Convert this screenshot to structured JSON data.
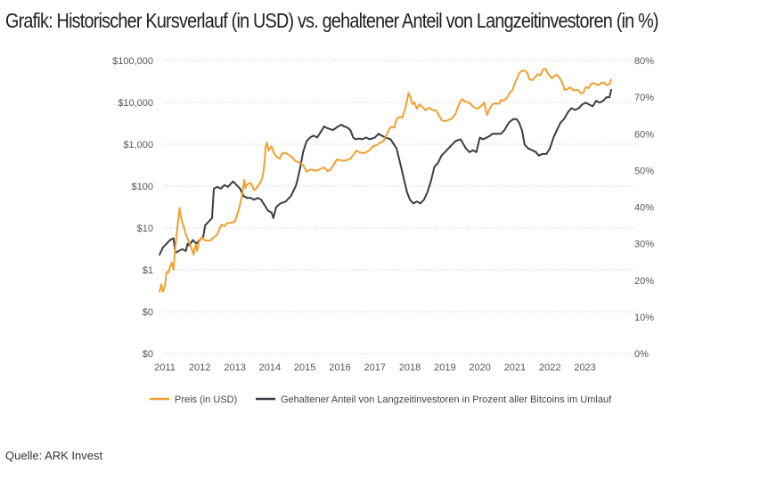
{
  "title": "Grafik: Historischer Kursverlauf (in USD) vs. gehaltener Anteil von Langzeitinvestoren (in %)",
  "source": "Quelle: ARK Invest",
  "chart_data": {
    "type": "line",
    "x_ticks": [
      "2011",
      "2012",
      "2013",
      "2014",
      "2015",
      "2016",
      "2017",
      "2018",
      "2019",
      "2020",
      "2021",
      "2022",
      "2023"
    ],
    "y_left_ticks": [
      "$100,000",
      "$10,000",
      "$1,000",
      "$100",
      "$10",
      "$1",
      "$0",
      "$0"
    ],
    "y_right_ticks": [
      "80%",
      "70%",
      "60%",
      "50%",
      "40%",
      "30%",
      "20%",
      "10%",
      "0%"
    ],
    "y_left_range_log10": [
      -2,
      5
    ],
    "y_right_range": [
      0,
      80
    ],
    "x_range": [
      2011,
      2023.75
    ],
    "legend_position": "bottom",
    "colors": {
      "price": "#f0a030",
      "share": "#3a3d43",
      "grid": "#d9d9d9"
    },
    "series": [
      {
        "name": "Preis (in USD)",
        "axis": "left",
        "color": "#f0a030",
        "points": [
          [
            2010.85,
            0.3
          ],
          [
            2010.9,
            0.45
          ],
          [
            2010.95,
            0.3
          ],
          [
            2011.0,
            0.4
          ],
          [
            2011.05,
            0.9
          ],
          [
            2011.1,
            0.85
          ],
          [
            2011.15,
            1.2
          ],
          [
            2011.2,
            1.5
          ],
          [
            2011.25,
            1.0
          ],
          [
            2011.3,
            3.5
          ],
          [
            2011.35,
            9
          ],
          [
            2011.42,
            30
          ],
          [
            2011.46,
            18
          ],
          [
            2011.5,
            14
          ],
          [
            2011.55,
            10
          ],
          [
            2011.6,
            7
          ],
          [
            2011.7,
            4.5
          ],
          [
            2011.78,
            3
          ],
          [
            2011.82,
            2.3
          ],
          [
            2011.88,
            4
          ],
          [
            2011.92,
            2.8
          ],
          [
            2011.97,
            4.5
          ],
          [
            2012.05,
            6
          ],
          [
            2012.15,
            5
          ],
          [
            2012.3,
            5
          ],
          [
            2012.4,
            6
          ],
          [
            2012.5,
            7
          ],
          [
            2012.55,
            9
          ],
          [
            2012.62,
            12
          ],
          [
            2012.7,
            11
          ],
          [
            2012.78,
            13
          ],
          [
            2012.9,
            13.5
          ],
          [
            2013.0,
            14
          ],
          [
            2013.1,
            25
          ],
          [
            2013.2,
            55
          ],
          [
            2013.27,
            140
          ],
          [
            2013.3,
            90
          ],
          [
            2013.35,
            110
          ],
          [
            2013.45,
            120
          ],
          [
            2013.55,
            80
          ],
          [
            2013.62,
            90
          ],
          [
            2013.7,
            115
          ],
          [
            2013.75,
            130
          ],
          [
            2013.8,
            180
          ],
          [
            2013.85,
            380
          ],
          [
            2013.88,
            900
          ],
          [
            2013.92,
            1100
          ],
          [
            2013.96,
            700
          ],
          [
            2014.0,
            800
          ],
          [
            2014.05,
            900
          ],
          [
            2014.12,
            600
          ],
          [
            2014.2,
            500
          ],
          [
            2014.28,
            450
          ],
          [
            2014.35,
            600
          ],
          [
            2014.45,
            620
          ],
          [
            2014.55,
            550
          ],
          [
            2014.65,
            480
          ],
          [
            2014.72,
            400
          ],
          [
            2014.8,
            380
          ],
          [
            2014.88,
            350
          ],
          [
            2014.95,
            320
          ],
          [
            2015.05,
            220
          ],
          [
            2015.15,
            250
          ],
          [
            2015.25,
            240
          ],
          [
            2015.35,
            235
          ],
          [
            2015.45,
            260
          ],
          [
            2015.55,
            280
          ],
          [
            2015.65,
            230
          ],
          [
            2015.72,
            240
          ],
          [
            2015.8,
            300
          ],
          [
            2015.87,
            380
          ],
          [
            2015.92,
            430
          ],
          [
            2016.0,
            420
          ],
          [
            2016.1,
            400
          ],
          [
            2016.2,
            420
          ],
          [
            2016.3,
            450
          ],
          [
            2016.4,
            580
          ],
          [
            2016.47,
            700
          ],
          [
            2016.55,
            650
          ],
          [
            2016.65,
            610
          ],
          [
            2016.75,
            640
          ],
          [
            2016.85,
            730
          ],
          [
            2016.95,
            900
          ],
          [
            2017.05,
            950
          ],
          [
            2017.15,
            1100
          ],
          [
            2017.25,
            1200
          ],
          [
            2017.35,
            1800
          ],
          [
            2017.45,
            2600
          ],
          [
            2017.55,
            2500
          ],
          [
            2017.62,
            4000
          ],
          [
            2017.7,
            4500
          ],
          [
            2017.78,
            4300
          ],
          [
            2017.85,
            6500
          ],
          [
            2017.92,
            11000
          ],
          [
            2017.96,
            17000
          ],
          [
            2018.02,
            13000
          ],
          [
            2018.08,
            9000
          ],
          [
            2018.13,
            10000
          ],
          [
            2018.2,
            7000
          ],
          [
            2018.27,
            9000
          ],
          [
            2018.35,
            8000
          ],
          [
            2018.45,
            6500
          ],
          [
            2018.55,
            7500
          ],
          [
            2018.65,
            6500
          ],
          [
            2018.75,
            6400
          ],
          [
            2018.85,
            4500
          ],
          [
            2018.92,
            3700
          ],
          [
            2019.0,
            3600
          ],
          [
            2019.1,
            3800
          ],
          [
            2019.2,
            4100
          ],
          [
            2019.3,
            5300
          ],
          [
            2019.38,
            8000
          ],
          [
            2019.45,
            11000
          ],
          [
            2019.5,
            12000
          ],
          [
            2019.57,
            10500
          ],
          [
            2019.65,
            10000
          ],
          [
            2019.72,
            9500
          ],
          [
            2019.8,
            8000
          ],
          [
            2019.87,
            7300
          ],
          [
            2019.95,
            7200
          ],
          [
            2020.05,
            8500
          ],
          [
            2020.12,
            10000
          ],
          [
            2020.2,
            5000
          ],
          [
            2020.28,
            7000
          ],
          [
            2020.35,
            9000
          ],
          [
            2020.45,
            9500
          ],
          [
            2020.55,
            9200
          ],
          [
            2020.6,
            11500
          ],
          [
            2020.68,
            11000
          ],
          [
            2020.78,
            13000
          ],
          [
            2020.85,
            17000
          ],
          [
            2020.92,
            19000
          ],
          [
            2021.0,
            29000
          ],
          [
            2021.05,
            35000
          ],
          [
            2021.12,
            50000
          ],
          [
            2021.2,
            57000
          ],
          [
            2021.28,
            58000
          ],
          [
            2021.35,
            50000
          ],
          [
            2021.42,
            35000
          ],
          [
            2021.5,
            34000
          ],
          [
            2021.58,
            40000
          ],
          [
            2021.65,
            47000
          ],
          [
            2021.72,
            44000
          ],
          [
            2021.8,
            61000
          ],
          [
            2021.87,
            64000
          ],
          [
            2021.95,
            48000
          ],
          [
            2022.05,
            38000
          ],
          [
            2022.12,
            42000
          ],
          [
            2022.2,
            46000
          ],
          [
            2022.28,
            38000
          ],
          [
            2022.35,
            30000
          ],
          [
            2022.42,
            20000
          ],
          [
            2022.5,
            21000
          ],
          [
            2022.58,
            23000
          ],
          [
            2022.65,
            20000
          ],
          [
            2022.72,
            19500
          ],
          [
            2022.8,
            20000
          ],
          [
            2022.87,
            16500
          ],
          [
            2022.95,
            16800
          ],
          [
            2023.02,
            23000
          ],
          [
            2023.1,
            22000
          ],
          [
            2023.18,
            28000
          ],
          [
            2023.25,
            29000
          ],
          [
            2023.32,
            27000
          ],
          [
            2023.4,
            26000
          ],
          [
            2023.48,
            30000
          ],
          [
            2023.55,
            29500
          ],
          [
            2023.62,
            26000
          ],
          [
            2023.7,
            27000
          ],
          [
            2023.75,
            35000
          ]
        ]
      },
      {
        "name": "Gehaltener Anteil von Langzeitinvestoren in Prozent aller Bitcoins im Umlauf",
        "axis": "right",
        "color": "#3a3d43",
        "points": [
          [
            2010.85,
            27
          ],
          [
            2010.95,
            29
          ],
          [
            2011.05,
            30
          ],
          [
            2011.15,
            31
          ],
          [
            2011.25,
            31.5
          ],
          [
            2011.3,
            27.5
          ],
          [
            2011.4,
            28
          ],
          [
            2011.5,
            28.5
          ],
          [
            2011.6,
            28
          ],
          [
            2011.65,
            30
          ],
          [
            2011.7,
            29.5
          ],
          [
            2011.8,
            31
          ],
          [
            2011.9,
            30
          ],
          [
            2012.0,
            31
          ],
          [
            2012.1,
            32
          ],
          [
            2012.15,
            35
          ],
          [
            2012.25,
            36
          ],
          [
            2012.35,
            37
          ],
          [
            2012.4,
            45
          ],
          [
            2012.5,
            45.5
          ],
          [
            2012.6,
            45
          ],
          [
            2012.7,
            46
          ],
          [
            2012.8,
            45.5
          ],
          [
            2012.95,
            47
          ],
          [
            2013.05,
            46
          ],
          [
            2013.15,
            45
          ],
          [
            2013.25,
            43
          ],
          [
            2013.35,
            42.5
          ],
          [
            2013.45,
            42.5
          ],
          [
            2013.55,
            42
          ],
          [
            2013.65,
            42.5
          ],
          [
            2013.75,
            42
          ],
          [
            2013.85,
            40.5
          ],
          [
            2013.95,
            39
          ],
          [
            2014.05,
            38.5
          ],
          [
            2014.1,
            37
          ],
          [
            2014.18,
            40
          ],
          [
            2014.3,
            41
          ],
          [
            2014.45,
            41.5
          ],
          [
            2014.6,
            43
          ],
          [
            2014.75,
            46
          ],
          [
            2014.85,
            50
          ],
          [
            2014.95,
            55
          ],
          [
            2015.05,
            58
          ],
          [
            2015.15,
            59
          ],
          [
            2015.25,
            59.5
          ],
          [
            2015.35,
            59
          ],
          [
            2015.42,
            60
          ],
          [
            2015.55,
            62
          ],
          [
            2015.65,
            61.5
          ],
          [
            2015.8,
            61
          ],
          [
            2015.95,
            62
          ],
          [
            2016.05,
            62.5
          ],
          [
            2016.12,
            62
          ],
          [
            2016.2,
            61.8
          ],
          [
            2016.3,
            61
          ],
          [
            2016.38,
            59
          ],
          [
            2016.45,
            58.5
          ],
          [
            2016.55,
            58.7
          ],
          [
            2016.65,
            58.5
          ],
          [
            2016.75,
            59
          ],
          [
            2016.85,
            58.5
          ],
          [
            2017.0,
            59
          ],
          [
            2017.1,
            60
          ],
          [
            2017.2,
            59.5
          ],
          [
            2017.3,
            59
          ],
          [
            2017.45,
            58.5
          ],
          [
            2017.55,
            57
          ],
          [
            2017.62,
            56
          ],
          [
            2017.72,
            52
          ],
          [
            2017.82,
            48
          ],
          [
            2017.92,
            44
          ],
          [
            2018.0,
            42
          ],
          [
            2018.1,
            41
          ],
          [
            2018.2,
            41.5
          ],
          [
            2018.3,
            41
          ],
          [
            2018.4,
            42
          ],
          [
            2018.5,
            44
          ],
          [
            2018.6,
            47
          ],
          [
            2018.7,
            51
          ],
          [
            2018.8,
            52
          ],
          [
            2018.9,
            54
          ],
          [
            2019.0,
            55
          ],
          [
            2019.1,
            56
          ],
          [
            2019.2,
            57
          ],
          [
            2019.3,
            58
          ],
          [
            2019.45,
            58.5
          ],
          [
            2019.6,
            56
          ],
          [
            2019.7,
            55
          ],
          [
            2019.8,
            55.5
          ],
          [
            2019.9,
            55
          ],
          [
            2020.0,
            59
          ],
          [
            2020.08,
            58.5
          ],
          [
            2020.2,
            59
          ],
          [
            2020.3,
            59.5
          ],
          [
            2020.35,
            60
          ],
          [
            2020.5,
            60
          ],
          [
            2020.6,
            60
          ],
          [
            2020.7,
            61
          ],
          [
            2020.82,
            63
          ],
          [
            2020.95,
            64
          ],
          [
            2021.05,
            64
          ],
          [
            2021.12,
            63
          ],
          [
            2021.2,
            61
          ],
          [
            2021.28,
            57
          ],
          [
            2021.38,
            56
          ],
          [
            2021.5,
            55.5
          ],
          [
            2021.6,
            55
          ],
          [
            2021.68,
            54
          ],
          [
            2021.78,
            54.5
          ],
          [
            2021.9,
            54.5
          ],
          [
            2022.0,
            56
          ],
          [
            2022.1,
            59
          ],
          [
            2022.2,
            61
          ],
          [
            2022.3,
            63
          ],
          [
            2022.4,
            64
          ],
          [
            2022.52,
            66
          ],
          [
            2022.62,
            67
          ],
          [
            2022.72,
            66.5
          ],
          [
            2022.82,
            67
          ],
          [
            2022.92,
            68
          ],
          [
            2023.02,
            68.5
          ],
          [
            2023.12,
            68
          ],
          [
            2023.22,
            67.5
          ],
          [
            2023.32,
            69
          ],
          [
            2023.42,
            68.5
          ],
          [
            2023.52,
            69
          ],
          [
            2023.62,
            70
          ],
          [
            2023.7,
            70
          ],
          [
            2023.75,
            72
          ]
        ]
      }
    ]
  }
}
